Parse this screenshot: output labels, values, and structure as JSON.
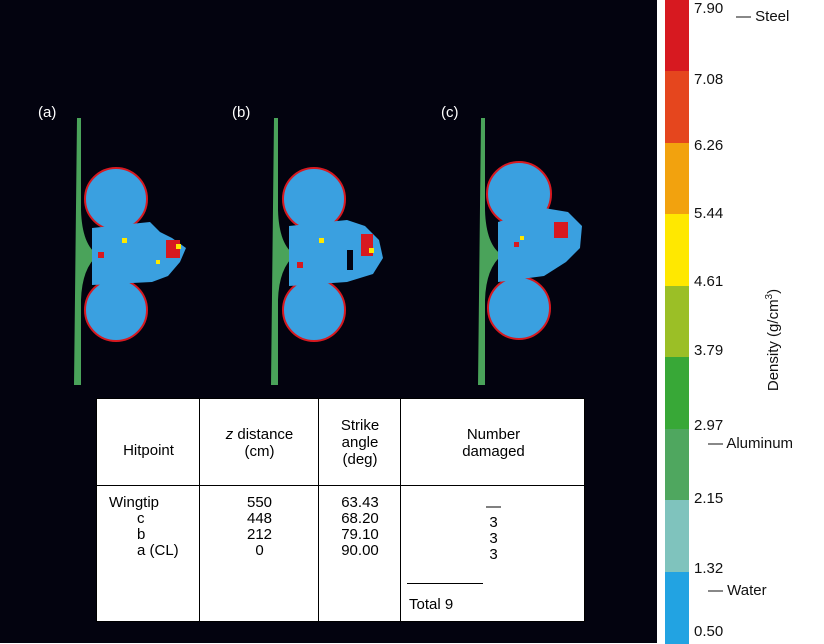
{
  "panels": [
    {
      "label": "(a)"
    },
    {
      "label": "(b)"
    },
    {
      "label": "(c)"
    }
  ],
  "table": {
    "headers": {
      "hitpoint": "Hitpoint",
      "z_italic": "z",
      "z_rest": " distance",
      "z_unit": "(cm)",
      "strike": [
        "Strike",
        "angle",
        "(deg)"
      ],
      "number": [
        "Number",
        "damaged"
      ]
    },
    "rows": [
      {
        "hitpoint": "Wingtip",
        "z": "550",
        "angle": "63.43",
        "damaged": "—"
      },
      {
        "hitpoint": "c",
        "z": "448",
        "angle": "68.20",
        "damaged": "3"
      },
      {
        "hitpoint": "b",
        "z": "212",
        "angle": "79.10",
        "damaged": "3"
      },
      {
        "hitpoint": "a (CL)",
        "z": "0",
        "angle": "90.00",
        "damaged": "3"
      }
    ],
    "total_label": "Total",
    "total_value": "9"
  },
  "colorbar": {
    "ticks": [
      "7.90",
      "7.08",
      "6.26",
      "5.44",
      "4.61",
      "3.79",
      "2.97",
      "2.15",
      "1.32",
      "0.50"
    ],
    "band_colors": [
      "#d71920",
      "#e5461e",
      "#f2a20e",
      "#ffe800",
      "#9bbf26",
      "#38a837",
      "#4fa75f",
      "#7fc3bd",
      "#22a3e2"
    ],
    "materials": {
      "steel": "Steel",
      "aluminum": "Aluminum",
      "water": "Water"
    },
    "axis_label_main": "Density (g/cm",
    "axis_label_sup": "3",
    "axis_label_end": ")"
  },
  "colors": {
    "background": "#03030f",
    "water": "#3aa0e0",
    "steel": "#d71920",
    "plate": "#4aa35a",
    "hot": "#ffe800"
  }
}
